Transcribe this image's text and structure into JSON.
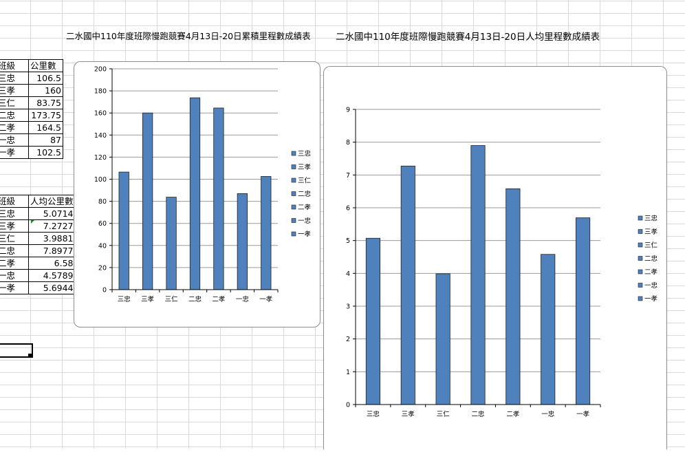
{
  "titles": {
    "cumulative": "二水國中110年度班際慢跑競賽4月13日-20日累積里程數成績表",
    "per_capita": "二水國中110年度班際慢跑競賽4月13日-20日人均里程數成績表"
  },
  "table_total": {
    "headers": [
      "班級",
      "公里數"
    ],
    "rows": [
      {
        "cls": "三忠",
        "val": "106.5"
      },
      {
        "cls": "三孝",
        "val": "160"
      },
      {
        "cls": "三仁",
        "val": "83.75"
      },
      {
        "cls": "二忠",
        "val": "173.75"
      },
      {
        "cls": "二孝",
        "val": "164.5"
      },
      {
        "cls": "一忠",
        "val": "87"
      },
      {
        "cls": "一孝",
        "val": "102.5"
      }
    ]
  },
  "table_avg": {
    "headers": [
      "班級",
      "人均公里數"
    ],
    "rows": [
      {
        "cls": "三忠",
        "val": "5.0714"
      },
      {
        "cls": "三孝",
        "val": "7.2727"
      },
      {
        "cls": "三仁",
        "val": "3.9881"
      },
      {
        "cls": "二忠",
        "val": "7.8977"
      },
      {
        "cls": "二孝",
        "val": "6.58"
      },
      {
        "cls": "一忠",
        "val": "4.5789"
      },
      {
        "cls": "一孝",
        "val": "5.6944"
      }
    ]
  },
  "colors": {
    "bar_fill": "#4f81bd",
    "bar_stroke": "#1f1f1f",
    "gridline": "#9a9a9a"
  },
  "chart_data": [
    {
      "type": "bar",
      "categories": [
        "三忠",
        "三孝",
        "三仁",
        "二忠",
        "二孝",
        "一忠",
        "一孝"
      ],
      "values": [
        106.5,
        160,
        83.75,
        173.75,
        164.5,
        87,
        102.5
      ],
      "ylim": [
        0,
        200
      ],
      "yticks": [
        "0",
        "20",
        "40",
        "60",
        "80",
        "100",
        "120",
        "140",
        "160",
        "180",
        "200"
      ],
      "grid": true,
      "legend": [
        "三忠",
        "三孝",
        "三仁",
        "二忠",
        "二孝",
        "一忠",
        "一孝"
      ],
      "legend_position": "right"
    },
    {
      "type": "bar",
      "categories": [
        "三忠",
        "三孝",
        "三仁",
        "二忠",
        "二孝",
        "一忠",
        "一孝"
      ],
      "values": [
        5.0714,
        7.2727,
        3.9881,
        7.8977,
        6.58,
        4.5789,
        5.6944
      ],
      "ylim": [
        0,
        9
      ],
      "yticks": [
        "0",
        "1",
        "2",
        "3",
        "4",
        "5",
        "6",
        "7",
        "8",
        "9"
      ],
      "grid": true,
      "legend": [
        "三忠",
        "三孝",
        "三仁",
        "二忠",
        "二孝",
        "一忠",
        "一孝"
      ],
      "legend_position": "right"
    }
  ]
}
